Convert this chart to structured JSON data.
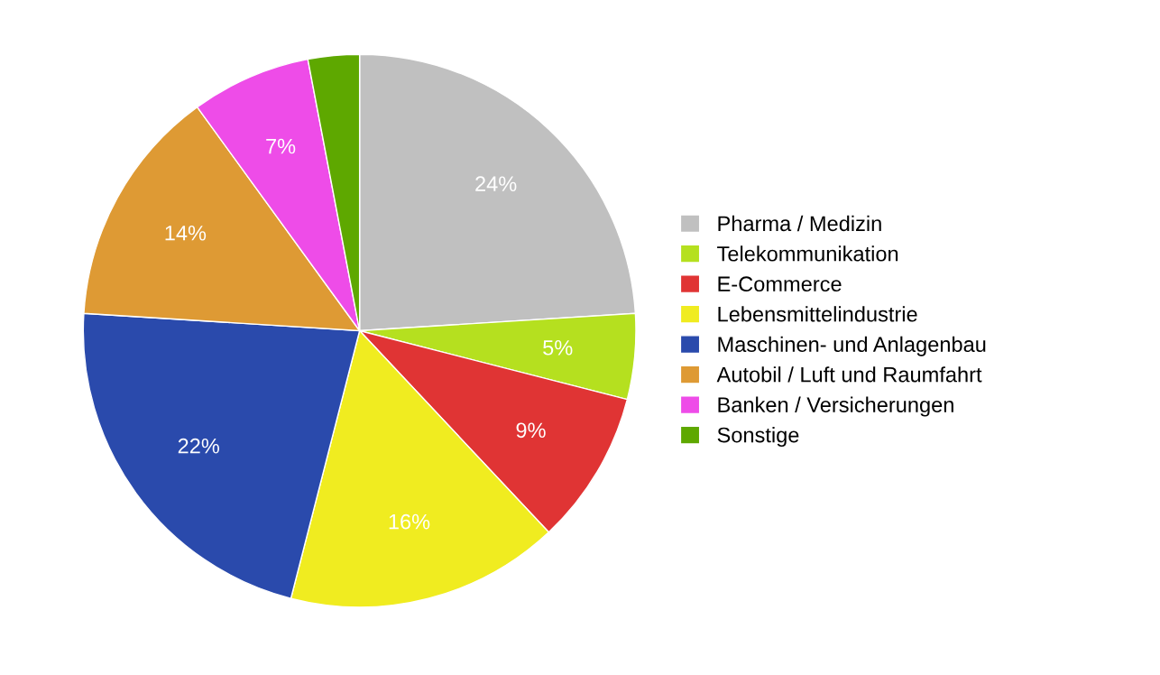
{
  "chart_data": {
    "type": "pie",
    "categories": [
      "Pharma / Medizin",
      "Telekommunikation",
      "E-Commerce",
      "Lebensmittelindustrie",
      "Maschinen- und Anlagenbau",
      "Autobil / Luft und Raumfahrt",
      "Banken / Versicherungen",
      "Sonstige"
    ],
    "values": [
      24,
      5,
      9,
      16,
      22,
      14,
      7,
      3
    ],
    "value_labels": [
      "24%",
      "5%",
      "9%",
      "16%",
      "22%",
      "14%",
      "7%",
      null
    ],
    "colors": [
      "#c0c0c0",
      "#b5e01f",
      "#e03434",
      "#f0ec20",
      "#2a4aac",
      "#de9a34",
      "#ee4ce8",
      "#5ea800"
    ],
    "legend": "right"
  }
}
